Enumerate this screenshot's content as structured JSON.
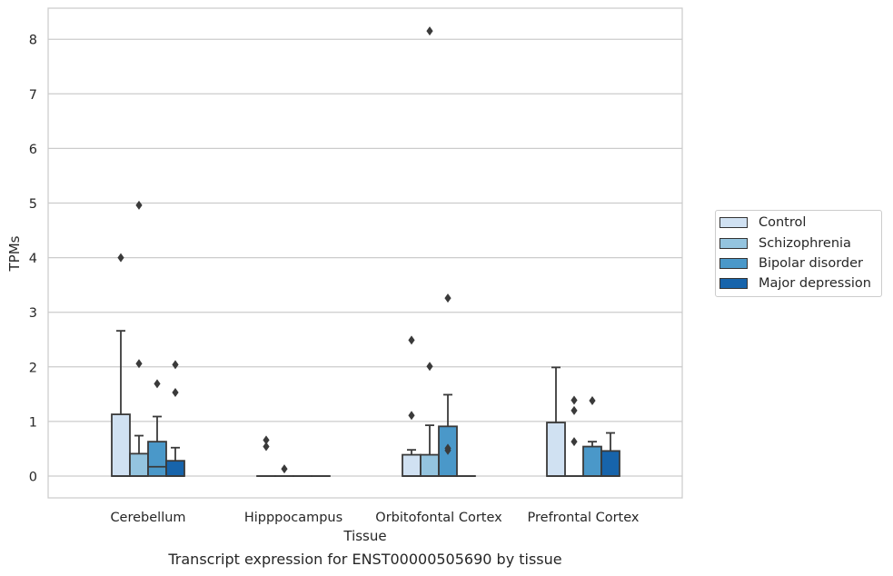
{
  "chart_data": {
    "type": "box",
    "ylabel": "TPMs",
    "xlabel": "Tissue",
    "caption": "Transcript expression for ENST00000505690 by tissue",
    "ylim": [
      -0.4,
      8.55
    ],
    "yticks": [
      0,
      1,
      2,
      3,
      4,
      5,
      6,
      7,
      8
    ],
    "grid": true,
    "legend_position": "right",
    "categories": [
      "Cerebellum",
      "Hipppocampus",
      "Orbitofontal Cortex",
      "Prefrontal Cortex"
    ],
    "series": [
      {
        "name": "Control",
        "color": "#d0e1f2"
      },
      {
        "name": "Schizophrenia",
        "color": "#94c4df"
      },
      {
        "name": "Bipolar disorder",
        "color": "#4a98c9"
      },
      {
        "name": "Major depression",
        "color": "#1764ab"
      }
    ],
    "boxes": [
      [
        {
          "q1": 0,
          "median": 0,
          "q3": 1.13,
          "whisker_low": 0,
          "whisker_high": 2.66,
          "outliers": [
            4.0
          ]
        },
        {
          "q1": 0,
          "median": 0,
          "q3": 0.41,
          "whisker_low": 0,
          "whisker_high": 0.74,
          "outliers": [
            4.96,
            2.06
          ]
        },
        {
          "q1": 0,
          "median": 0.17,
          "q3": 0.63,
          "whisker_low": 0,
          "whisker_high": 1.09,
          "outliers": [
            1.69
          ]
        },
        {
          "q1": 0,
          "median": 0,
          "q3": 0.28,
          "whisker_low": 0,
          "whisker_high": 0.52,
          "outliers": [
            2.04,
            1.53
          ]
        }
      ],
      [
        {
          "q1": 0,
          "median": 0,
          "q3": 0,
          "whisker_low": 0,
          "whisker_high": 0,
          "outliers": [
            0.66,
            0.54
          ]
        },
        {
          "q1": 0,
          "median": 0,
          "q3": 0,
          "whisker_low": 0,
          "whisker_high": 0,
          "outliers": [
            0.13
          ]
        },
        {
          "q1": 0,
          "median": 0,
          "q3": 0,
          "whisker_low": 0,
          "whisker_high": 0,
          "outliers": []
        },
        {
          "q1": 0,
          "median": 0,
          "q3": 0,
          "whisker_low": 0,
          "whisker_high": 0,
          "outliers": []
        }
      ],
      [
        {
          "q1": 0,
          "median": 0,
          "q3": 0.39,
          "whisker_low": 0,
          "whisker_high": 0.48,
          "outliers": [
            2.49,
            1.11
          ]
        },
        {
          "q1": 0,
          "median": 0,
          "q3": 0.39,
          "whisker_low": 0,
          "whisker_high": 0.93,
          "outliers": [
            8.15,
            2.01
          ]
        },
        {
          "q1": 0,
          "median": 0,
          "q3": 0.91,
          "whisker_low": 0,
          "whisker_high": 1.49,
          "outliers": [
            3.26,
            0.51,
            0.47
          ]
        },
        {
          "q1": 0,
          "median": 0,
          "q3": 0,
          "whisker_low": 0,
          "whisker_high": 0,
          "outliers": []
        }
      ],
      [
        {
          "q1": 0,
          "median": 0,
          "q3": 0.98,
          "whisker_low": 0,
          "whisker_high": 1.99,
          "outliers": []
        },
        {
          "q1": 0,
          "median": 0,
          "q3": 0,
          "whisker_low": 0,
          "whisker_high": 0,
          "outliers": [
            1.39,
            1.2,
            0.63
          ]
        },
        {
          "q1": 0,
          "median": 0,
          "q3": 0.54,
          "whisker_low": 0,
          "whisker_high": 0.63,
          "outliers": [
            1.38
          ]
        },
        {
          "q1": 0,
          "median": 0,
          "q3": 0.46,
          "whisker_low": 0,
          "whisker_high": 0.79,
          "outliers": []
        }
      ]
    ]
  }
}
